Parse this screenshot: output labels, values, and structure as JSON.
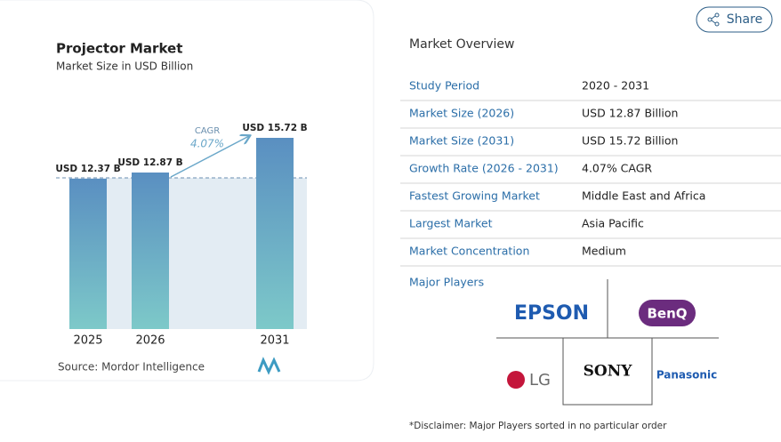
{
  "chart_data": {
    "type": "bar",
    "title": "Projector Market",
    "subtitle": "Market Size in USD Billion",
    "categories": [
      "2025",
      "2026",
      "2031"
    ],
    "values": [
      12.37,
      12.87,
      15.72
    ],
    "value_labels": [
      "USD 12.37 B",
      "USD 12.87 B",
      "USD 15.72 B"
    ],
    "annotation": {
      "label": "CAGR",
      "value": "4.07%"
    },
    "source": "Source: Mordor Intelligence"
  },
  "share": "Share",
  "overview": {
    "title": "Market Overview",
    "rows": [
      [
        "Study Period",
        "2020 - 2031"
      ],
      [
        "Market Size (2026)",
        "USD 12.87 Billion"
      ],
      [
        "Market Size (2031)",
        "USD 15.72 Billion"
      ],
      [
        "Growth Rate (2026 - 2031)",
        "4.07% CAGR"
      ],
      [
        "Fastest Growing Market",
        "Middle East and Africa"
      ],
      [
        "Largest Market",
        "Asia Pacific"
      ],
      [
        "Market Concentration",
        "Medium"
      ]
    ],
    "players_title": "Major Players",
    "players": [
      "EPSON",
      "BenQ",
      "LG",
      "SONY",
      "Panasonic"
    ],
    "disclaimer": "*Disclaimer: Major Players sorted in no particular order"
  }
}
